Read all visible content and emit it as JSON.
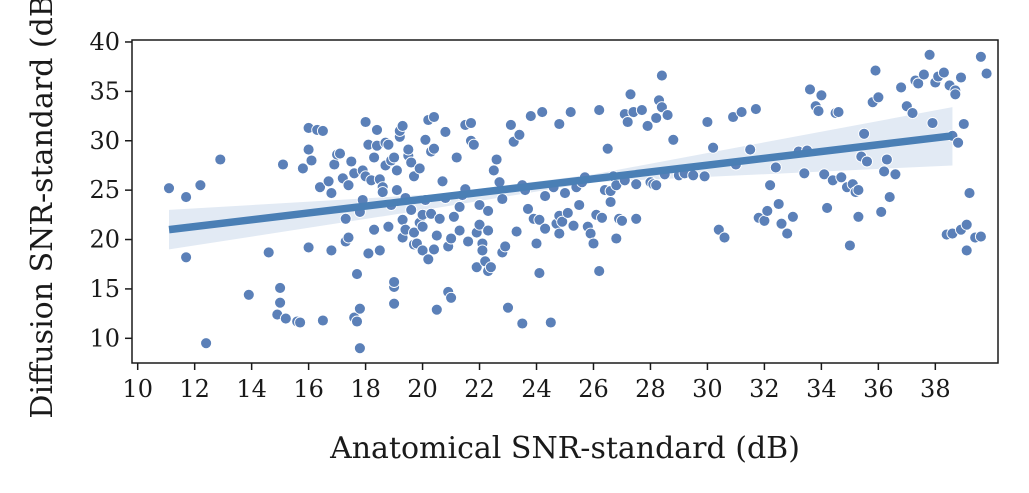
{
  "chart_data": {
    "type": "scatter",
    "title": "",
    "xlabel": "Anatomical SNR-standard (dB)",
    "ylabel": "Diffusion SNR-standard (dB)",
    "xlim": [
      9.8,
      40.2
    ],
    "ylim": [
      7.5,
      40.2
    ],
    "xticks": [
      "10",
      "12",
      "14",
      "16",
      "18",
      "20",
      "22",
      "24",
      "26",
      "28",
      "30",
      "32",
      "34",
      "36",
      "38"
    ],
    "yticks": [
      "10",
      "15",
      "20",
      "25",
      "30",
      "35",
      "40"
    ],
    "grid": false,
    "colors": {
      "points": "#5b80b8",
      "fit_line": "#4a7fb5",
      "band": "#dde6f2"
    },
    "regression": {
      "x_start": 11.1,
      "y_start": 21.0,
      "x_end": 38.6,
      "y_end": 30.5
    },
    "confidence_band": {
      "x": [
        11.1,
        20.5,
        26.0,
        38.6
      ],
      "lower": [
        19.0,
        23.2,
        25.8,
        27.5
      ],
      "upper": [
        23.0,
        24.6,
        26.6,
        33.4
      ]
    },
    "points": [
      [
        11.1,
        25.2
      ],
      [
        11.7,
        24.3
      ],
      [
        11.7,
        18.2
      ],
      [
        12.2,
        25.5
      ],
      [
        12.4,
        9.5
      ],
      [
        12.9,
        28.1
      ],
      [
        13.9,
        14.4
      ],
      [
        14.6,
        18.7
      ],
      [
        14.9,
        12.4
      ],
      [
        15.0,
        13.6
      ],
      [
        15.0,
        15.1
      ],
      [
        15.1,
        27.6
      ],
      [
        15.2,
        12.0
      ],
      [
        15.6,
        11.7
      ],
      [
        15.7,
        11.6
      ],
      [
        15.8,
        27.2
      ],
      [
        16.0,
        19.2
      ],
      [
        16.0,
        31.3
      ],
      [
        16.0,
        29.1
      ],
      [
        16.1,
        28.0
      ],
      [
        16.3,
        31.1
      ],
      [
        16.4,
        25.3
      ],
      [
        16.5,
        31.0
      ],
      [
        16.5,
        11.8
      ],
      [
        16.7,
        25.9
      ],
      [
        16.8,
        24.7
      ],
      [
        16.8,
        18.9
      ],
      [
        16.9,
        27.6
      ],
      [
        17.0,
        28.6
      ],
      [
        17.1,
        28.7
      ],
      [
        17.2,
        26.2
      ],
      [
        17.3,
        19.8
      ],
      [
        17.3,
        22.1
      ],
      [
        17.4,
        25.5
      ],
      [
        17.4,
        20.2
      ],
      [
        17.5,
        27.9
      ],
      [
        17.6,
        26.7
      ],
      [
        17.6,
        12.1
      ],
      [
        17.7,
        11.7
      ],
      [
        17.7,
        16.5
      ],
      [
        17.8,
        9.0
      ],
      [
        17.8,
        13.0
      ],
      [
        17.8,
        22.8
      ],
      [
        17.9,
        24.0
      ],
      [
        17.9,
        27.0
      ],
      [
        18.0,
        26.4
      ],
      [
        18.0,
        31.9
      ],
      [
        18.1,
        29.6
      ],
      [
        18.1,
        18.6
      ],
      [
        18.2,
        26.0
      ],
      [
        18.3,
        28.3
      ],
      [
        18.3,
        21.0
      ],
      [
        18.4,
        31.1
      ],
      [
        18.4,
        29.5
      ],
      [
        18.5,
        26.1
      ],
      [
        18.5,
        18.9
      ],
      [
        18.6,
        25.3
      ],
      [
        18.6,
        24.8
      ],
      [
        18.7,
        27.5
      ],
      [
        18.7,
        29.8
      ],
      [
        18.8,
        29.6
      ],
      [
        18.8,
        21.3
      ],
      [
        18.9,
        28.0
      ],
      [
        18.9,
        23.5
      ],
      [
        19.0,
        28.3
      ],
      [
        19.0,
        13.5
      ],
      [
        19.0,
        15.2
      ],
      [
        19.0,
        15.7
      ],
      [
        19.1,
        25.0
      ],
      [
        19.1,
        27.0
      ],
      [
        19.2,
        30.4
      ],
      [
        19.2,
        31.0
      ],
      [
        19.3,
        31.5
      ],
      [
        19.3,
        22.0
      ],
      [
        19.3,
        20.2
      ],
      [
        19.4,
        24.2
      ],
      [
        19.4,
        21.0
      ],
      [
        19.5,
        28.5
      ],
      [
        19.5,
        29.1
      ],
      [
        19.6,
        27.8
      ],
      [
        19.6,
        23.0
      ],
      [
        19.7,
        26.4
      ],
      [
        19.7,
        19.5
      ],
      [
        19.7,
        20.7
      ],
      [
        19.8,
        19.6
      ],
      [
        19.9,
        21.7
      ],
      [
        19.9,
        27.2
      ],
      [
        20.0,
        18.9
      ],
      [
        20.0,
        21.3
      ],
      [
        20.0,
        22.5
      ],
      [
        20.1,
        30.1
      ],
      [
        20.1,
        24.0
      ],
      [
        20.2,
        32.1
      ],
      [
        20.2,
        18.0
      ],
      [
        20.3,
        28.9
      ],
      [
        20.3,
        22.6
      ],
      [
        20.4,
        32.4
      ],
      [
        20.4,
        29.2
      ],
      [
        20.4,
        19.0
      ],
      [
        20.5,
        12.9
      ],
      [
        20.5,
        20.4
      ],
      [
        20.6,
        22.1
      ],
      [
        20.7,
        25.9
      ],
      [
        20.8,
        24.2
      ],
      [
        20.8,
        30.9
      ],
      [
        20.9,
        19.3
      ],
      [
        20.9,
        14.7
      ],
      [
        21.0,
        14.1
      ],
      [
        21.0,
        20.1
      ],
      [
        21.1,
        22.3
      ],
      [
        21.2,
        28.3
      ],
      [
        21.3,
        20.9
      ],
      [
        21.3,
        23.3
      ],
      [
        21.4,
        24.5
      ],
      [
        21.5,
        31.6
      ],
      [
        21.5,
        25.1
      ],
      [
        21.6,
        19.8
      ],
      [
        21.7,
        30.0
      ],
      [
        21.7,
        31.8
      ],
      [
        21.8,
        29.6
      ],
      [
        21.9,
        20.7
      ],
      [
        21.9,
        17.2
      ],
      [
        22.0,
        23.5
      ],
      [
        22.0,
        21.5
      ],
      [
        22.1,
        19.6
      ],
      [
        22.1,
        18.9
      ],
      [
        22.2,
        17.8
      ],
      [
        22.3,
        20.9
      ],
      [
        22.3,
        22.9
      ],
      [
        22.3,
        16.8
      ],
      [
        22.4,
        17.2
      ],
      [
        22.5,
        27.0
      ],
      [
        22.6,
        28.1
      ],
      [
        22.7,
        25.8
      ],
      [
        22.8,
        24.1
      ],
      [
        22.8,
        18.7
      ],
      [
        22.9,
        19.3
      ],
      [
        23.0,
        13.1
      ],
      [
        23.1,
        31.6
      ],
      [
        23.2,
        29.9
      ],
      [
        23.3,
        20.8
      ],
      [
        23.4,
        30.6
      ],
      [
        23.5,
        11.5
      ],
      [
        23.5,
        25.5
      ],
      [
        23.6,
        25.0
      ],
      [
        23.7,
        23.1
      ],
      [
        23.8,
        32.5
      ],
      [
        23.9,
        22.1
      ],
      [
        24.0,
        19.6
      ],
      [
        24.1,
        16.6
      ],
      [
        24.1,
        22.0
      ],
      [
        24.2,
        32.9
      ],
      [
        24.3,
        21.1
      ],
      [
        24.3,
        24.4
      ],
      [
        24.5,
        11.6
      ],
      [
        24.6,
        25.3
      ],
      [
        24.7,
        21.6
      ],
      [
        24.8,
        20.6
      ],
      [
        24.8,
        31.7
      ],
      [
        24.8,
        22.4
      ],
      [
        24.9,
        21.8
      ],
      [
        25.0,
        24.7
      ],
      [
        25.1,
        22.7
      ],
      [
        25.2,
        32.9
      ],
      [
        25.3,
        21.4
      ],
      [
        25.4,
        25.3
      ],
      [
        25.5,
        23.5
      ],
      [
        25.6,
        25.8
      ],
      [
        25.7,
        26.3
      ],
      [
        25.8,
        21.3
      ],
      [
        25.9,
        20.6
      ],
      [
        26.0,
        19.6
      ],
      [
        26.1,
        22.5
      ],
      [
        26.2,
        16.8
      ],
      [
        26.2,
        33.1
      ],
      [
        26.3,
        22.2
      ],
      [
        26.4,
        25.0
      ],
      [
        26.5,
        29.2
      ],
      [
        26.6,
        24.9
      ],
      [
        26.6,
        23.8
      ],
      [
        26.7,
        26.4
      ],
      [
        26.8,
        25.5
      ],
      [
        26.8,
        20.1
      ],
      [
        26.9,
        22.1
      ],
      [
        27.0,
        21.9
      ],
      [
        27.1,
        26.0
      ],
      [
        27.1,
        32.7
      ],
      [
        27.2,
        31.9
      ],
      [
        27.3,
        34.7
      ],
      [
        27.4,
        32.9
      ],
      [
        27.5,
        25.6
      ],
      [
        27.5,
        22.1
      ],
      [
        27.7,
        33.1
      ],
      [
        27.9,
        31.5
      ],
      [
        28.0,
        25.8
      ],
      [
        28.1,
        25.6
      ],
      [
        28.2,
        25.5
      ],
      [
        28.2,
        32.3
      ],
      [
        28.3,
        34.1
      ],
      [
        28.4,
        33.4
      ],
      [
        28.4,
        36.6
      ],
      [
        28.5,
        26.6
      ],
      [
        28.6,
        32.6
      ],
      [
        28.8,
        30.1
      ],
      [
        29.0,
        26.5
      ],
      [
        29.2,
        26.7
      ],
      [
        29.5,
        26.5
      ],
      [
        29.9,
        26.4
      ],
      [
        30.0,
        31.9
      ],
      [
        30.2,
        29.3
      ],
      [
        30.4,
        21.0
      ],
      [
        30.6,
        20.2
      ],
      [
        30.9,
        32.4
      ],
      [
        31.0,
        27.6
      ],
      [
        31.2,
        32.9
      ],
      [
        31.5,
        29.1
      ],
      [
        31.7,
        33.2
      ],
      [
        31.8,
        22.2
      ],
      [
        32.0,
        21.9
      ],
      [
        32.1,
        22.9
      ],
      [
        32.2,
        25.5
      ],
      [
        32.4,
        27.3
      ],
      [
        32.5,
        23.6
      ],
      [
        32.6,
        21.6
      ],
      [
        32.8,
        20.6
      ],
      [
        33.0,
        22.3
      ],
      [
        33.2,
        28.9
      ],
      [
        33.4,
        26.7
      ],
      [
        33.5,
        29.0
      ],
      [
        33.6,
        35.2
      ],
      [
        33.8,
        33.5
      ],
      [
        33.9,
        33.0
      ],
      [
        34.0,
        34.6
      ],
      [
        34.1,
        26.6
      ],
      [
        34.2,
        23.2
      ],
      [
        34.4,
        26.0
      ],
      [
        34.5,
        32.8
      ],
      [
        34.6,
        32.9
      ],
      [
        34.7,
        26.3
      ],
      [
        34.9,
        25.3
      ],
      [
        35.0,
        19.4
      ],
      [
        35.1,
        25.6
      ],
      [
        35.2,
        24.8
      ],
      [
        35.3,
        22.3
      ],
      [
        35.3,
        25.0
      ],
      [
        35.4,
        28.4
      ],
      [
        35.5,
        30.7
      ],
      [
        35.6,
        27.9
      ],
      [
        35.8,
        33.9
      ],
      [
        35.9,
        37.1
      ],
      [
        36.0,
        34.4
      ],
      [
        36.1,
        22.8
      ],
      [
        36.2,
        26.9
      ],
      [
        36.3,
        28.1
      ],
      [
        36.4,
        24.3
      ],
      [
        36.6,
        26.6
      ],
      [
        36.8,
        35.4
      ],
      [
        37.0,
        33.5
      ],
      [
        37.2,
        32.8
      ],
      [
        37.3,
        36.1
      ],
      [
        37.4,
        35.8
      ],
      [
        37.6,
        36.7
      ],
      [
        37.8,
        38.7
      ],
      [
        37.9,
        31.8
      ],
      [
        38.0,
        35.9
      ],
      [
        38.1,
        36.5
      ],
      [
        38.3,
        36.9
      ],
      [
        38.4,
        20.5
      ],
      [
        38.5,
        35.6
      ],
      [
        38.6,
        30.5
      ],
      [
        38.6,
        20.6
      ],
      [
        38.7,
        35.1
      ],
      [
        38.7,
        34.7
      ],
      [
        38.8,
        29.8
      ],
      [
        38.9,
        36.4
      ],
      [
        38.9,
        21.0
      ],
      [
        39.0,
        31.7
      ],
      [
        39.1,
        21.5
      ],
      [
        39.1,
        18.9
      ],
      [
        39.2,
        24.7
      ],
      [
        39.4,
        20.2
      ],
      [
        39.6,
        38.5
      ],
      [
        39.6,
        20.3
      ],
      [
        39.8,
        36.8
      ]
    ]
  }
}
